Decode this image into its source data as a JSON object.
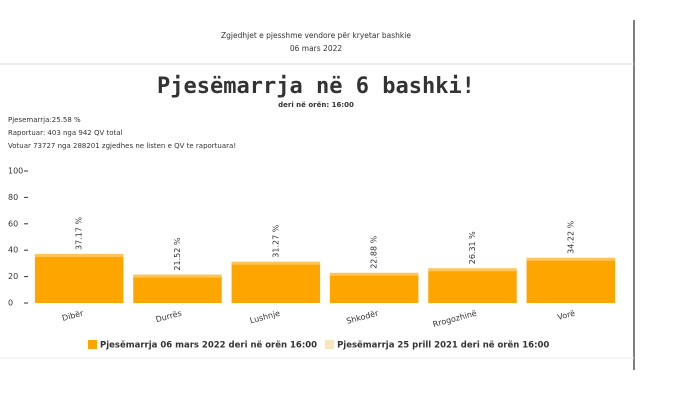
{
  "header": {
    "line1": "Zgjedhjet e pjesshme vendore për kryetar bashkie",
    "line2": "06 mars 2022"
  },
  "info": [
    "Pjesemarrja:25.58 %",
    "Raportuar: 403 nga 942 QV total",
    "Votuar 73727 nga 288201 zgjedhes ne listen e QV te raportuara!"
  ],
  "chart_data": {
    "type": "bar",
    "title": "Pjesëmarrja në 6 bashki!",
    "subtitle": "deri në orën: 16:00",
    "categories": [
      "Dibër",
      "Durrës",
      "Lushnje",
      "Shkodër",
      "Rrogozhinë",
      "Vorë"
    ],
    "series": [
      {
        "name": "Pjesëmarrja 06 mars 2022 deri në orën 16:00",
        "color": "#ffa500",
        "values": [
          37.17,
          21.52,
          31.27,
          22.88,
          26.31,
          34.22
        ],
        "value_labels": [
          "37.17 %",
          "21.52 %",
          "31.27 %",
          "22.88 %",
          "26.31 %",
          "34.22 %"
        ]
      },
      {
        "name": "Pjesëmarrja 25 prill 2021 deri në orën 16:00",
        "color": "#f8e6bd",
        "hidden": true
      }
    ],
    "ylim": [
      0,
      100
    ],
    "yticks": [
      0,
      20,
      40,
      60,
      80,
      100
    ],
    "legend": "bottom"
  }
}
